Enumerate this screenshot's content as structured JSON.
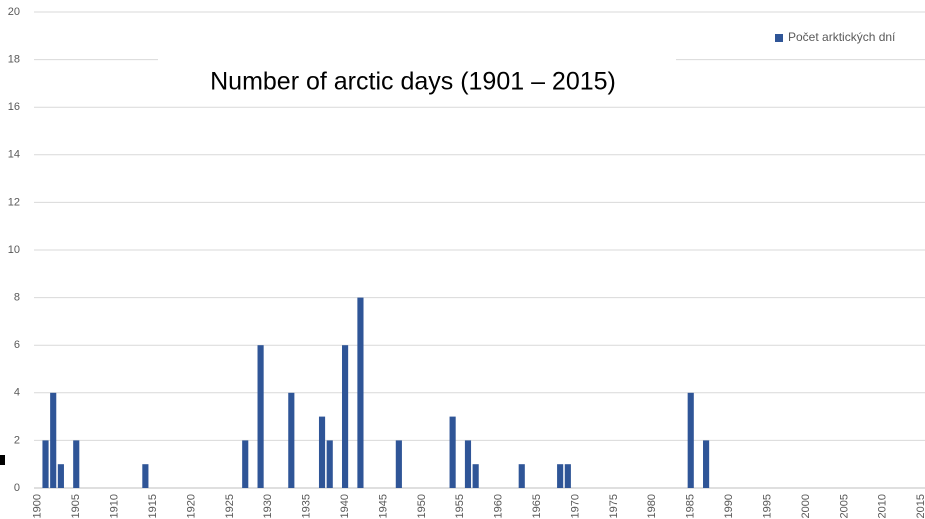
{
  "chart_data": {
    "type": "bar",
    "title": "Number of arctic days (1901 – 2015)",
    "legend": "Počet arktických dní",
    "legend_position": "top-right",
    "color": "#2f5597",
    "grid": true,
    "ylim": [
      0,
      20
    ],
    "yticks": [
      0,
      2,
      4,
      6,
      8,
      10,
      12,
      14,
      16,
      18,
      20
    ],
    "categories": [
      1900,
      null,
      null,
      null,
      null,
      1905,
      null,
      null,
      null,
      null,
      1910,
      null,
      null,
      null,
      null,
      1915,
      null,
      null,
      null,
      null,
      1920,
      null,
      null,
      null,
      null,
      1925,
      null,
      null,
      null,
      null,
      1930,
      null,
      null,
      null,
      null,
      1935,
      null,
      null,
      null,
      null,
      1940,
      null,
      null,
      null,
      null,
      1945,
      null,
      null,
      null,
      null,
      1950,
      null,
      null,
      null,
      null,
      1955,
      null,
      null,
      null,
      null,
      1960,
      null,
      null,
      null,
      null,
      1965,
      null,
      null,
      null,
      null,
      1970,
      null,
      null,
      null,
      null,
      1975,
      null,
      null,
      null,
      null,
      1980,
      null,
      null,
      null,
      null,
      1985,
      null,
      null,
      null,
      null,
      1990,
      null,
      null,
      null,
      null,
      1995,
      null,
      null,
      null,
      null,
      2000,
      null,
      null,
      null,
      null,
      2005,
      null,
      null,
      null,
      null,
      2010,
      null,
      null,
      null,
      null,
      2015
    ],
    "values": [
      0,
      2,
      4,
      1,
      0,
      2,
      0,
      0,
      0,
      0,
      0,
      0,
      0,
      0,
      1,
      0,
      0,
      0,
      0,
      0,
      0,
      0,
      0,
      0,
      0,
      0,
      0,
      2,
      0,
      6,
      0,
      0,
      0,
      4,
      0,
      0,
      0,
      3,
      2,
      0,
      6,
      0,
      8,
      0,
      0,
      0,
      0,
      2,
      0,
      0,
      0,
      0,
      0,
      0,
      3,
      0,
      2,
      1,
      0,
      0,
      0,
      0,
      0,
      1,
      0,
      0,
      0,
      0,
      1,
      1,
      0,
      0,
      0,
      0,
      0,
      0,
      0,
      0,
      0,
      0,
      0,
      0,
      0,
      0,
      0,
      4,
      0,
      2,
      0,
      0,
      0,
      0,
      0,
      0,
      0,
      0,
      0,
      0,
      0,
      0,
      0,
      0,
      0,
      0,
      0,
      0,
      0,
      0,
      0,
      0,
      0,
      0,
      0,
      0,
      0,
      0
    ]
  }
}
